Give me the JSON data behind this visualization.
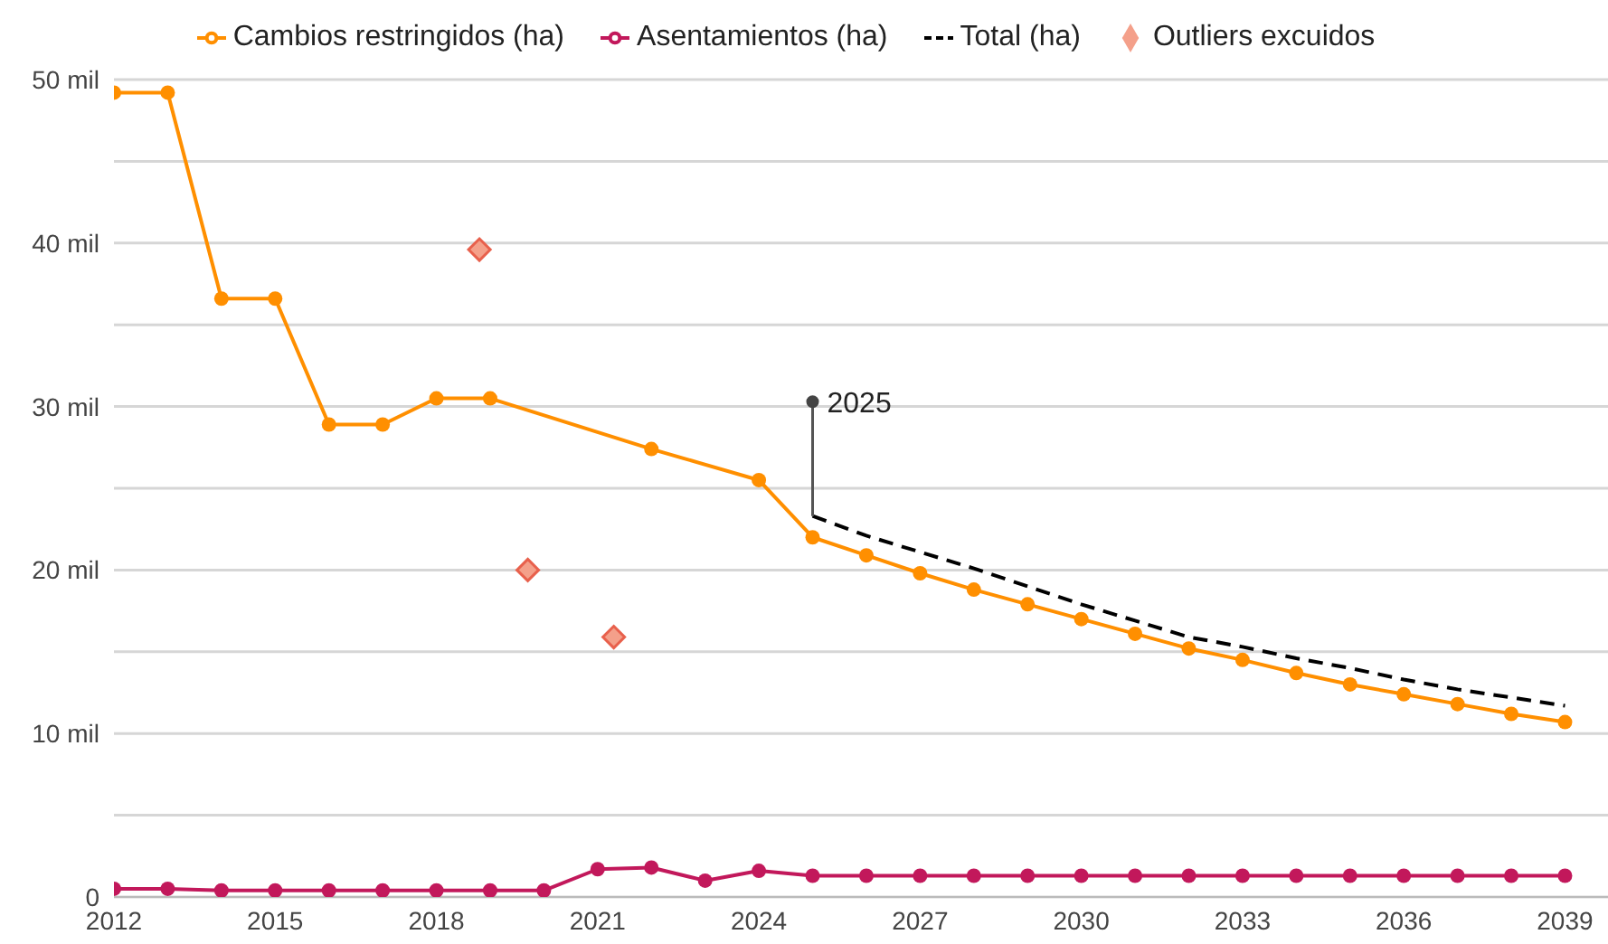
{
  "chart_data": {
    "type": "line",
    "x": [
      2012,
      2013,
      2014,
      2015,
      2016,
      2017,
      2018,
      2019,
      2020,
      2021,
      2022,
      2023,
      2024,
      2025,
      2026,
      2027,
      2028,
      2029,
      2030,
      2031,
      2032,
      2033,
      2034,
      2035,
      2036,
      2037,
      2038,
      2039
    ],
    "series": [
      {
        "name": "Cambios restringidos (ha)",
        "color": "#ff8f00",
        "marker": "circle",
        "values": [
          49.2,
          49.2,
          36.6,
          36.6,
          28.9,
          28.9,
          30.5,
          30.5,
          null,
          null,
          27.4,
          null,
          25.5,
          22.0,
          20.9,
          19.8,
          18.8,
          17.9,
          17.0,
          16.1,
          15.2,
          14.5,
          13.7,
          13.0,
          12.4,
          11.8,
          11.2,
          10.7
        ]
      },
      {
        "name": "Asentamientos (ha)",
        "color": "#c2185b",
        "marker": "circle",
        "values": [
          0.5,
          0.5,
          0.4,
          0.4,
          0.4,
          0.4,
          0.4,
          0.4,
          0.4,
          1.7,
          1.8,
          1.0,
          1.6,
          1.3,
          1.3,
          1.3,
          1.3,
          1.3,
          1.3,
          1.3,
          1.3,
          1.3,
          1.3,
          1.3,
          1.3,
          1.3,
          1.3,
          1.3
        ]
      },
      {
        "name": "Total (ha)",
        "color": "#000000",
        "marker": "none",
        "line_style": "dashed",
        "x": [
          2025,
          2026,
          2027,
          2028,
          2029,
          2030,
          2031,
          2032,
          2033,
          2034,
          2035,
          2036,
          2037,
          2038,
          2039
        ],
        "values": [
          23.3,
          22.1,
          21.1,
          20.1,
          19.0,
          17.9,
          16.9,
          15.9,
          15.3,
          14.6,
          14.0,
          13.3,
          12.7,
          12.2,
          11.7
        ]
      },
      {
        "name": "Outliers excuidos",
        "type": "scatter",
        "color": "#f4a08a",
        "marker": "diamond",
        "x": [
          2018.8,
          2019.7,
          2021.3
        ],
        "values": [
          39.6,
          20.0,
          15.9
        ]
      }
    ],
    "xlim": [
      2012,
      2039.8
    ],
    "xticks": [
      2012,
      2015,
      2018,
      2021,
      2024,
      2027,
      2030,
      2033,
      2036,
      2039
    ],
    "ylim": [
      0,
      50
    ],
    "yticks": [
      0,
      {
        "value": 5,
        "label": null
      },
      {
        "value": 10,
        "label": "10 mil"
      },
      {
        "value": 15,
        "label": null
      },
      {
        "value": 20,
        "label": "20 mil"
      },
      {
        "value": 25,
        "label": null
      },
      {
        "value": 30,
        "label": "30 mil"
      },
      {
        "value": 35,
        "label": null
      },
      {
        "value": 40,
        "label": "40 mil"
      },
      {
        "value": 45,
        "label": null
      },
      {
        "value": 50,
        "label": "50 mil"
      }
    ],
    "grid": "y",
    "legend": "top",
    "annotations": [
      {
        "text": "2025",
        "x": 2025,
        "y": 30.3
      }
    ]
  }
}
